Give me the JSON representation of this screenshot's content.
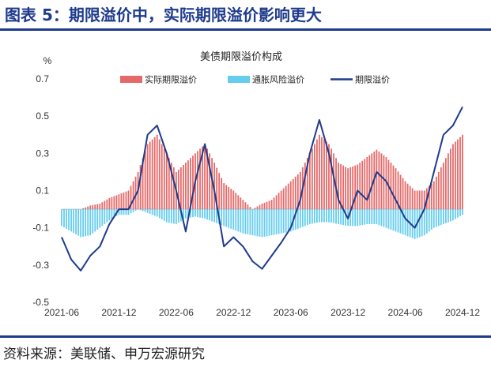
{
  "figure": {
    "title": "图表 5：期限溢价中，实际期限溢价影响更大",
    "source": "资料来源：美联储、申万宏源研究"
  },
  "colors": {
    "real": "#e46a6a",
    "inflation": "#66cdee",
    "total": "#1f3b8c",
    "title": "#1f3b8c"
  },
  "chart_data": {
    "type": "bar",
    "title": "美债期限溢价构成",
    "ylabel": "%",
    "ylim": [
      -0.5,
      0.7
    ],
    "y_ticks": [
      "0.7",
      "0.5",
      "0.3",
      "0.1",
      "-0.1",
      "-0.3",
      "-0.5"
    ],
    "x_ticks": [
      "2021-06",
      "2021-12",
      "2022-06",
      "2022-12",
      "2023-06",
      "2023-12",
      "2024-06",
      "2024-12"
    ],
    "x_range": [
      "2021-06",
      "2024-12"
    ],
    "legend_position": "top",
    "grid": false,
    "stacked": true,
    "x": [
      "2021-06",
      "2021-07",
      "2021-08",
      "2021-09",
      "2021-10",
      "2021-11",
      "2021-12",
      "2022-01",
      "2022-02",
      "2022-03",
      "2022-04",
      "2022-05",
      "2022-06",
      "2022-07",
      "2022-08",
      "2022-09",
      "2022-10",
      "2022-11",
      "2022-12",
      "2023-01",
      "2023-02",
      "2023-03",
      "2023-04",
      "2023-05",
      "2023-06",
      "2023-07",
      "2023-08",
      "2023-09",
      "2023-10",
      "2023-11",
      "2023-12",
      "2024-01",
      "2024-02",
      "2024-03",
      "2024-04",
      "2024-05",
      "2024-06",
      "2024-07",
      "2024-08",
      "2024-09",
      "2024-10",
      "2024-11",
      "2024-12"
    ],
    "series": [
      {
        "name": "实际期限溢价",
        "kind": "bar",
        "values": [
          0.0,
          0.0,
          0.0,
          0.02,
          0.03,
          0.06,
          0.08,
          0.1,
          0.2,
          0.35,
          0.4,
          0.3,
          0.2,
          0.25,
          0.3,
          0.35,
          0.25,
          0.14,
          0.1,
          0.05,
          0.0,
          0.03,
          0.05,
          0.1,
          0.15,
          0.2,
          0.3,
          0.4,
          0.35,
          0.25,
          0.22,
          0.24,
          0.28,
          0.32,
          0.28,
          0.22,
          0.15,
          0.1,
          0.1,
          0.15,
          0.25,
          0.35,
          0.4
        ]
      },
      {
        "name": "通胀风险溢价",
        "kind": "bar",
        "values": [
          -0.09,
          -0.12,
          -0.15,
          -0.14,
          -0.1,
          -0.06,
          -0.03,
          -0.03,
          0.0,
          -0.02,
          -0.04,
          -0.07,
          -0.08,
          -0.05,
          -0.04,
          -0.05,
          -0.07,
          -0.09,
          -0.11,
          -0.13,
          -0.14,
          -0.15,
          -0.14,
          -0.13,
          -0.12,
          -0.1,
          -0.08,
          -0.07,
          -0.07,
          -0.08,
          -0.09,
          -0.09,
          -0.08,
          -0.08,
          -0.1,
          -0.12,
          -0.14,
          -0.16,
          -0.14,
          -0.1,
          -0.08,
          -0.06,
          -0.03
        ]
      },
      {
        "name": "期限溢价",
        "kind": "line",
        "values": [
          -0.15,
          -0.27,
          -0.33,
          -0.25,
          -0.2,
          -0.08,
          0.0,
          0.0,
          0.1,
          0.4,
          0.45,
          0.3,
          0.1,
          -0.12,
          0.15,
          0.35,
          0.1,
          -0.2,
          -0.15,
          -0.2,
          -0.28,
          -0.32,
          -0.25,
          -0.18,
          -0.1,
          0.05,
          0.3,
          0.48,
          0.3,
          0.05,
          -0.05,
          0.1,
          0.05,
          0.2,
          0.15,
          0.05,
          -0.05,
          -0.1,
          0.0,
          0.2,
          0.4,
          0.45,
          0.55
        ]
      }
    ]
  }
}
